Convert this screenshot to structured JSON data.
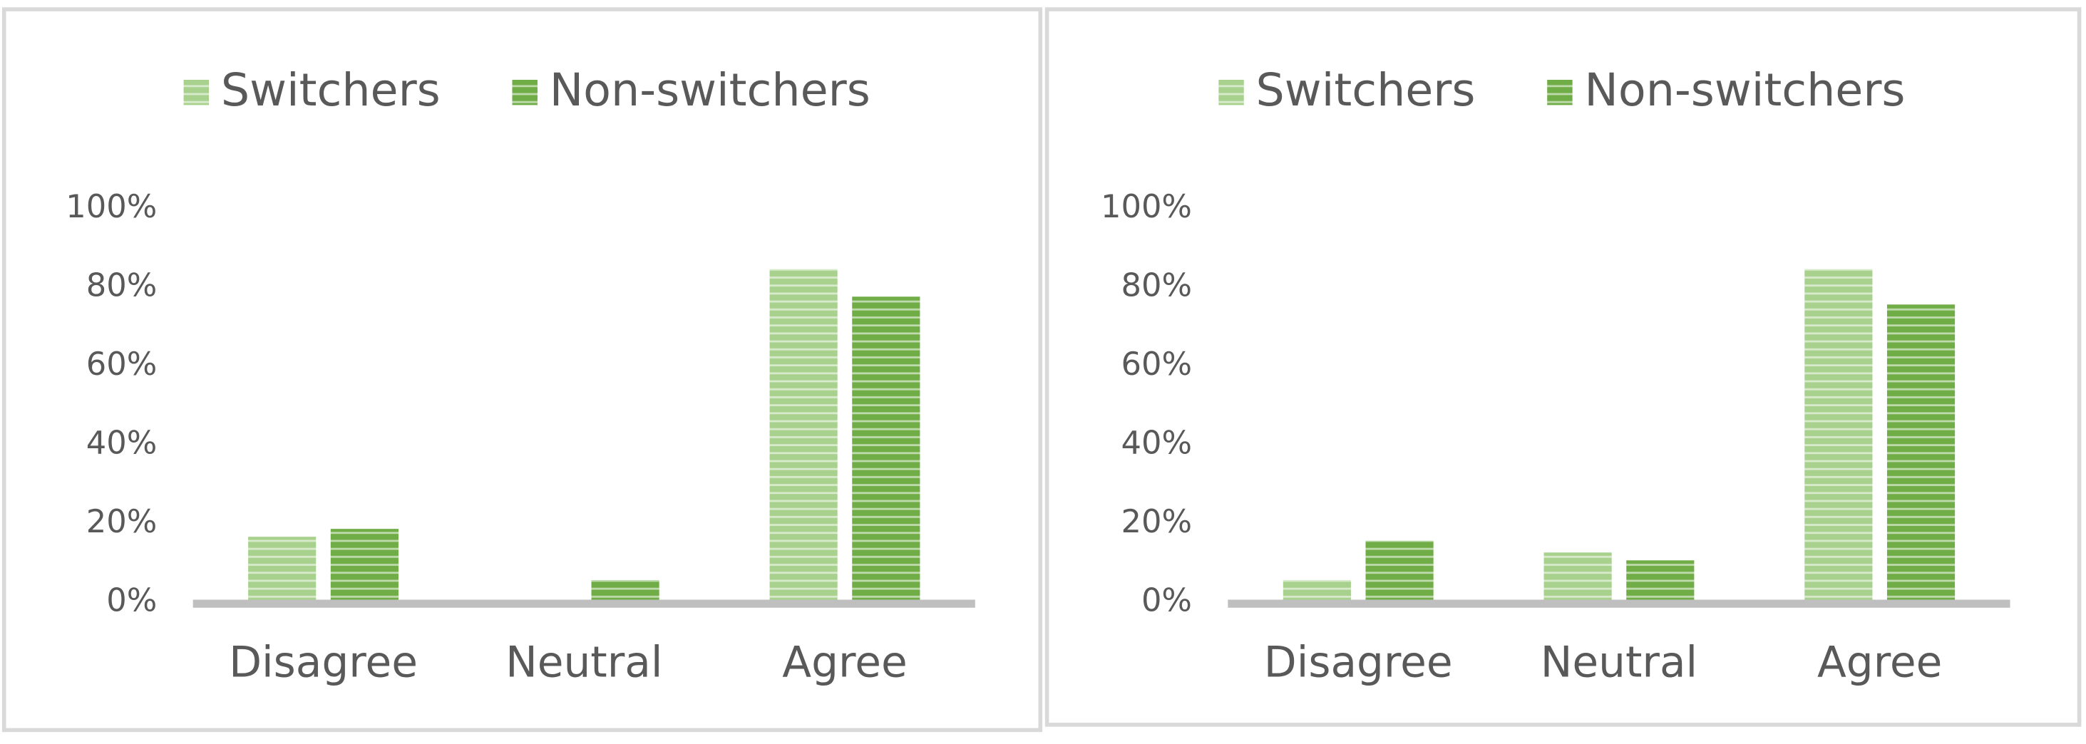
{
  "chart_data": [
    {
      "type": "bar",
      "categories": [
        "Disagree",
        "Neutral",
        "Agree"
      ],
      "series": [
        {
          "name": "Switchers",
          "color": "#a9d18e",
          "values": [
            16,
            0,
            84
          ]
        },
        {
          "name": "Non-switchers",
          "color": "#70ad47",
          "values": [
            18,
            5,
            77
          ]
        }
      ],
      "ylim": [
        0,
        100
      ],
      "yticks": [
        {
          "value": 0,
          "label": "0%"
        },
        {
          "value": 20,
          "label": "20%"
        },
        {
          "value": 40,
          "label": "40%"
        },
        {
          "value": 60,
          "label": "60%"
        },
        {
          "value": 80,
          "label": "80%"
        },
        {
          "value": 100,
          "label": "100%"
        }
      ],
      "legend": "top",
      "grid": false
    },
    {
      "type": "bar",
      "categories": [
        "Disagree",
        "Neutral",
        "Agree"
      ],
      "series": [
        {
          "name": "Switchers",
          "color": "#a9d18e",
          "values": [
            5,
            12,
            84
          ]
        },
        {
          "name": "Non-switchers",
          "color": "#70ad47",
          "values": [
            15,
            10,
            75
          ]
        }
      ],
      "ylim": [
        0,
        100
      ],
      "yticks": [
        {
          "value": 0,
          "label": "0%"
        },
        {
          "value": 20,
          "label": "20%"
        },
        {
          "value": 40,
          "label": "40%"
        },
        {
          "value": 60,
          "label": "60%"
        },
        {
          "value": 80,
          "label": "80%"
        },
        {
          "value": 100,
          "label": "100%"
        }
      ],
      "legend": "top",
      "grid": false
    }
  ]
}
